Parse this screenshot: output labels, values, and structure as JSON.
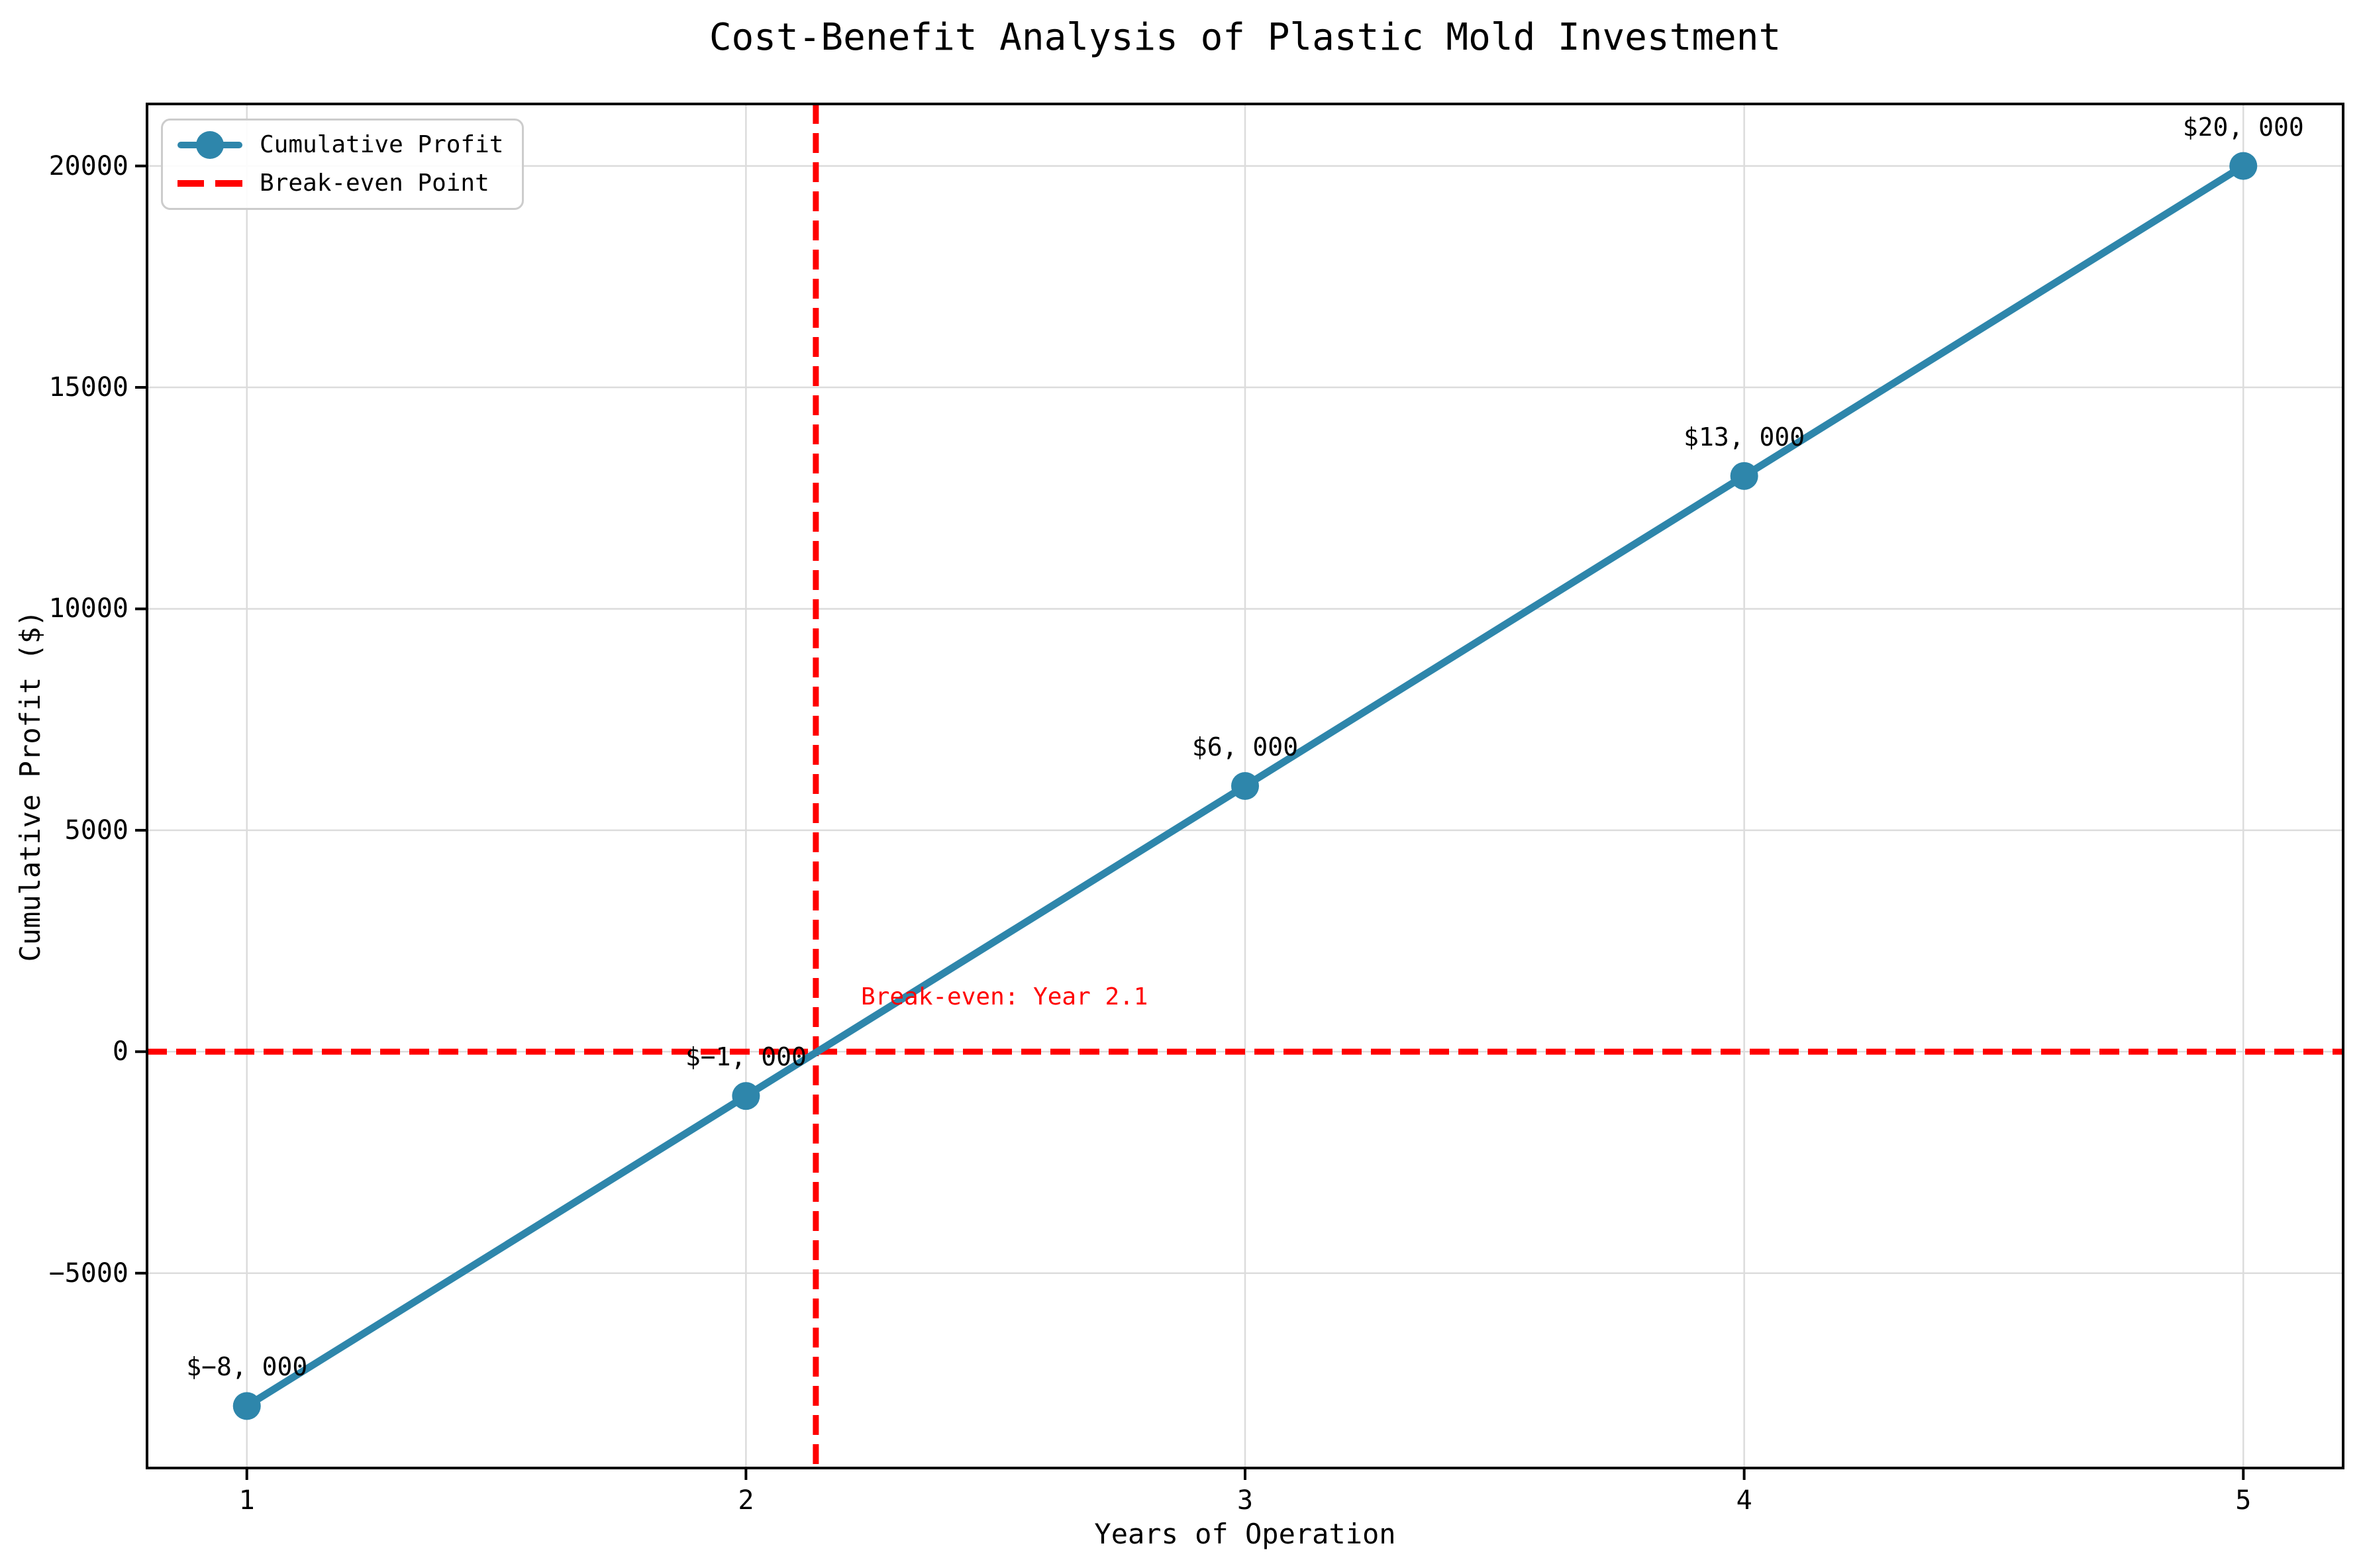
{
  "colors": {
    "series": "#2E86AB",
    "break_even": "#FF0000",
    "grid": "#DCDCDC",
    "text": "#000000"
  },
  "legend": {
    "items": [
      {
        "label": "Cumulative Profit",
        "swatch": "line-with-circle-marker"
      },
      {
        "label": "Break-even Point",
        "swatch": "red-dashed-line"
      }
    ]
  },
  "chart_data": {
    "type": "line",
    "title": "Cost-Benefit Analysis of Plastic Mold Investment",
    "xlabel": "Years of Operation",
    "ylabel": "Cumulative Profit ($)",
    "x": [
      1,
      2,
      3,
      4,
      5
    ],
    "series": [
      {
        "name": "Cumulative Profit",
        "color": "#2E86AB",
        "values": [
          -8000,
          -1000,
          6000,
          13000,
          20000
        ]
      }
    ],
    "point_labels": [
      "$−8, 000",
      "$−1, 000",
      "$6, 000",
      "$13, 000",
      "$20, 000"
    ],
    "xticks": [
      1,
      2,
      3,
      4,
      5
    ],
    "xtick_labels": [
      "1",
      "2",
      "3",
      "4",
      "5"
    ],
    "yticks": [
      -5000,
      0,
      5000,
      10000,
      15000,
      20000
    ],
    "ytick_labels": [
      "−5000",
      "0",
      "5000",
      "10000",
      "15000",
      "20000"
    ],
    "xlim": [
      0.8,
      5.2
    ],
    "ylim": [
      -9400,
      21400
    ],
    "grid": true,
    "legend_position": "upper left",
    "break_even": {
      "x": 2.14,
      "y": 0,
      "annotation": "Break-even: Year 2.1",
      "label": "Break-even Point",
      "color": "#FF0000"
    }
  }
}
